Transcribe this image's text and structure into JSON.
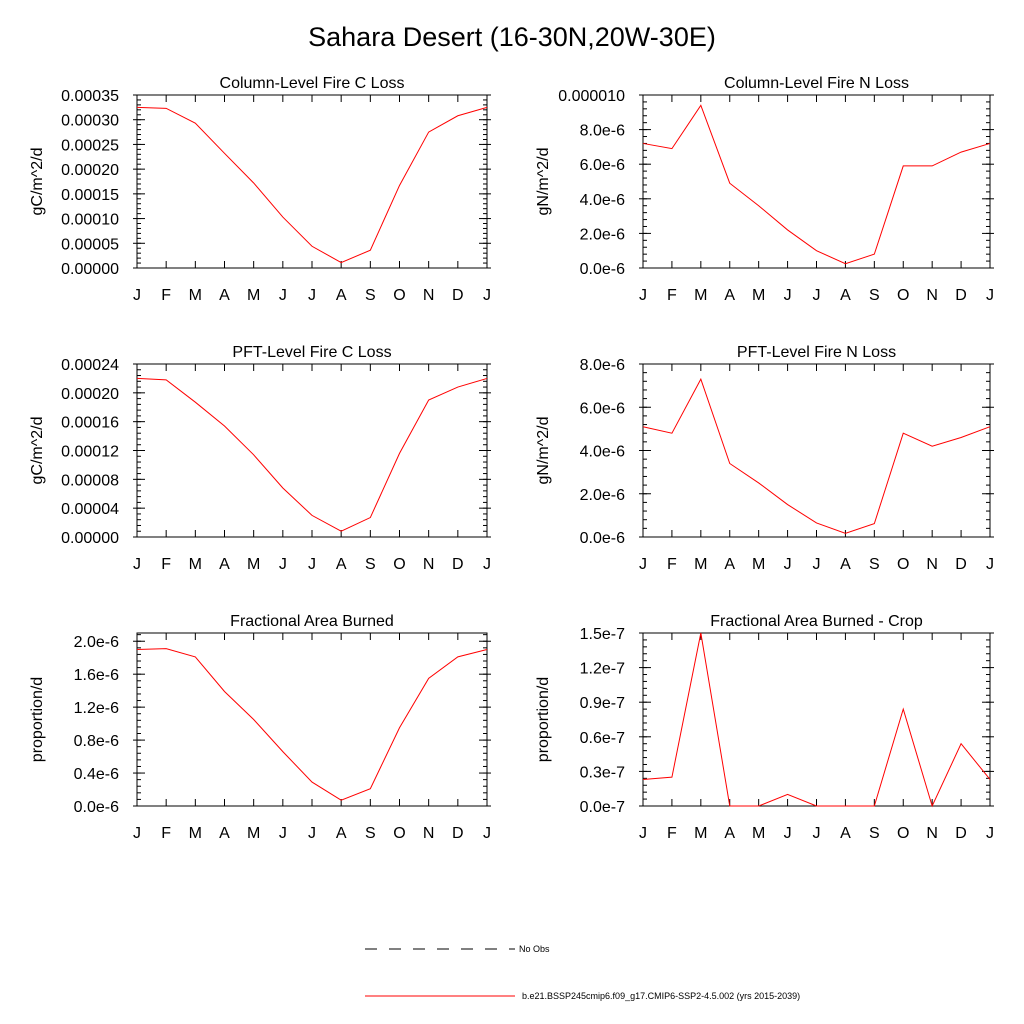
{
  "page": {
    "title": "Sahara Desert (16-30N,20W-30E)"
  },
  "legend": [
    {
      "label": "No Obs",
      "style": "dashed",
      "color": "#000000"
    },
    {
      "label": "b.e21.BSSP245cmip6.f09_g17.CMIP6-SSP2-4.5.002 (yrs 2015-2039)",
      "style": "solid",
      "color": "#ff0000"
    }
  ],
  "chart_data": [
    {
      "type": "line",
      "title": "Column-Level Fire C Loss",
      "ylabel": "gC/m^2/d",
      "categories": [
        "J",
        "F",
        "M",
        "A",
        "M",
        "J",
        "J",
        "A",
        "S",
        "O",
        "N",
        "D",
        "J"
      ],
      "ylim": [
        0,
        0.00035
      ],
      "yticks": [
        "0.00000",
        "0.00005",
        "0.00010",
        "0.00015",
        "0.00020",
        "0.00025",
        "0.00030",
        "0.00035"
      ],
      "ytick_values": [
        0,
        5e-05,
        0.0001,
        0.00015,
        0.0002,
        0.00025,
        0.0003,
        0.00035
      ],
      "series": [
        {
          "color": "#ff0000",
          "values": [
            0.000325,
            0.000323,
            0.000293,
            0.000232,
            0.000172,
            0.000103,
            4.4e-05,
            1.1e-05,
            3.6e-05,
            0.000167,
            0.000275,
            0.000308,
            0.000325
          ]
        }
      ]
    },
    {
      "type": "line",
      "title": "Column-Level Fire N Loss",
      "ylabel": "gN/m^2/d",
      "categories": [
        "J",
        "F",
        "M",
        "A",
        "M",
        "J",
        "J",
        "A",
        "S",
        "O",
        "N",
        "D",
        "J"
      ],
      "ylim": [
        0,
        1e-05
      ],
      "yticks": [
        "0.0e-6",
        "2.0e-6",
        "4.0e-6",
        "6.0e-6",
        "8.0e-6",
        "0.000010"
      ],
      "ytick_values": [
        0,
        2e-06,
        4e-06,
        6e-06,
        8e-06,
        1e-05
      ],
      "series": [
        {
          "color": "#ff0000",
          "values": [
            7.2e-06,
            6.9e-06,
            9.4e-06,
            4.9e-06,
            3.6e-06,
            2.2e-06,
            1e-06,
            2.5e-07,
            8e-07,
            5.9e-06,
            5.9e-06,
            6.7e-06,
            7.2e-06
          ]
        }
      ]
    },
    {
      "type": "line",
      "title": "PFT-Level Fire C Loss",
      "ylabel": "gC/m^2/d",
      "categories": [
        "J",
        "F",
        "M",
        "A",
        "M",
        "J",
        "J",
        "A",
        "S",
        "O",
        "N",
        "D",
        "J"
      ],
      "ylim": [
        0,
        0.00024
      ],
      "yticks": [
        "0.00000",
        "0.00004",
        "0.00008",
        "0.00012",
        "0.00016",
        "0.00020",
        "0.00024"
      ],
      "ytick_values": [
        0,
        4e-05,
        8e-05,
        0.00012,
        0.00016,
        0.0002,
        0.00024
      ],
      "series": [
        {
          "color": "#ff0000",
          "values": [
            0.00022,
            0.000218,
            0.000187,
            0.000154,
            0.000114,
            6.8e-05,
            3e-05,
            8e-06,
            2.7e-05,
            0.000116,
            0.00019,
            0.000208,
            0.00022
          ]
        }
      ]
    },
    {
      "type": "line",
      "title": "PFT-Level Fire N Loss",
      "ylabel": "gN/m^2/d",
      "categories": [
        "J",
        "F",
        "M",
        "A",
        "M",
        "J",
        "J",
        "A",
        "S",
        "O",
        "N",
        "D",
        "J"
      ],
      "ylim": [
        0,
        8e-06
      ],
      "yticks": [
        "0.0e-6",
        "2.0e-6",
        "4.0e-6",
        "6.0e-6",
        "8.0e-6"
      ],
      "ytick_values": [
        0,
        2e-06,
        4e-06,
        6e-06,
        8e-06
      ],
      "series": [
        {
          "color": "#ff0000",
          "values": [
            5.1e-06,
            4.8e-06,
            7.3e-06,
            3.4e-06,
            2.5e-06,
            1.5e-06,
            6.5e-07,
            1.7e-07,
            6.2e-07,
            4.8e-06,
            4.2e-06,
            4.6e-06,
            5.1e-06
          ]
        }
      ]
    },
    {
      "type": "line",
      "title": "Fractional Area Burned",
      "ylabel": "proportion/d",
      "categories": [
        "J",
        "F",
        "M",
        "A",
        "M",
        "J",
        "J",
        "A",
        "S",
        "O",
        "N",
        "D",
        "J"
      ],
      "ylim": [
        0,
        2.1e-06
      ],
      "yticks": [
        "0.0e-6",
        "0.4e-6",
        "0.8e-6",
        "1.2e-6",
        "1.6e-6",
        "2.0e-6"
      ],
      "ytick_values": [
        0,
        4e-07,
        8e-07,
        1.2e-06,
        1.6e-06,
        2e-06
      ],
      "series": [
        {
          "color": "#ff0000",
          "values": [
            1.9e-06,
            1.91e-06,
            1.81e-06,
            1.39e-06,
            1.05e-06,
            6.6e-07,
            2.9e-07,
            7e-08,
            2.1e-07,
            9.5e-07,
            1.55e-06,
            1.81e-06,
            1.9e-06
          ]
        }
      ]
    },
    {
      "type": "line",
      "title": "Fractional Area Burned - Crop",
      "ylabel": "proportion/d",
      "categories": [
        "J",
        "F",
        "M",
        "A",
        "M",
        "J",
        "J",
        "A",
        "S",
        "O",
        "N",
        "D",
        "J"
      ],
      "ylim": [
        0,
        1.5e-07
      ],
      "yticks": [
        "0.0e-7",
        "0.3e-7",
        "0.6e-7",
        "0.9e-7",
        "1.2e-7",
        "1.5e-7"
      ],
      "ytick_values": [
        0,
        3e-08,
        6e-08,
        9e-08,
        1.2e-07,
        1.5e-07
      ],
      "series": [
        {
          "color": "#ff0000",
          "values": [
            2.3e-08,
            2.5e-08,
            1.5e-07,
            0,
            0,
            1e-08,
            0,
            0,
            0,
            8.4e-08,
            0,
            5.4e-08,
            2.3e-08
          ]
        }
      ]
    }
  ]
}
